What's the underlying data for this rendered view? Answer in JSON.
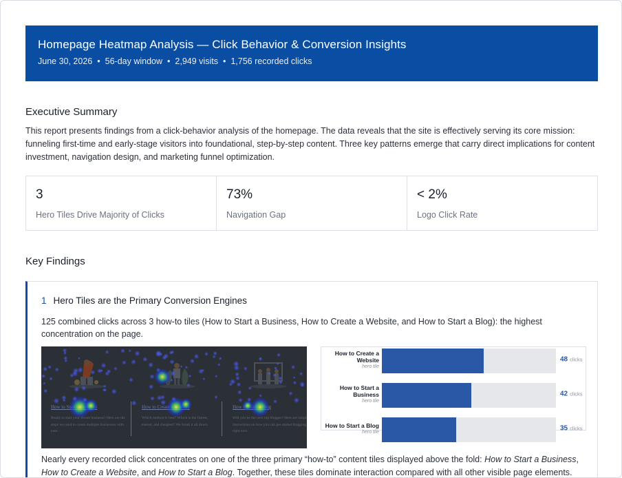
{
  "report": {
    "title": "Homepage Heatmap Analysis — Click Behavior & Conversion Insights",
    "date": "June 30, 2026",
    "window": "56-day window",
    "visits": "2,949 visits",
    "clicks": "1,756 recorded clicks",
    "separator": "•"
  },
  "executive_summary": {
    "heading": "Executive Summary",
    "text": "This report presents findings from a click-behavior analysis of the homepage. The data reveals that the site is effectively serving its core mission: funneling first-time and early-stage visitors into foundational, step-by-step content. Three key patterns emerge that carry direct implications for content investment, navigation design, and marketing funnel optimization."
  },
  "stats": [
    {
      "value": "3",
      "label": "Hero Tiles Drive Majority of Clicks"
    },
    {
      "value": "73%",
      "label": "Navigation Gap"
    },
    {
      "value": "< 2%",
      "label": "Logo Click Rate"
    }
  ],
  "key_findings": {
    "heading": "Key Findings",
    "items": [
      {
        "number": "1",
        "title": "Hero Tiles are the Primary Conversion Engines",
        "description": "125 combined clicks across 3 how-to tiles (How to Start a Business, How to Create a Website, and How to Start a Blog): the highest concentration on the page.",
        "footer_start": "Nearly every recorded click concentrates on one of the three primary “how-to” content tiles displayed above the fold: ",
        "footer_em1": "How to Start a Business",
        "footer_mid1": ", ",
        "footer_em2": "How to Create a Website",
        "footer_mid2": ", and ",
        "footer_em3": "How to Start a Blog",
        "footer_end": ". Together, these tiles dominate interaction compared with all other visible page elements.",
        "heatmap_tiles": [
          {
            "link": "How to Start a Business",
            "body": "Ready to start your dream business? Here are the steps we used to create multiple businesses with ease."
          },
          {
            "link": "How to Create a Website",
            "body": "Which method is best? Which is the fastest, easiest, and cheapest? We break it all down."
          },
          {
            "link": "How to Start a Blog",
            "body": "Will you be the next top blogger? Here are simple instructions on how you can get started blogging right now."
          }
        ]
      }
    ]
  },
  "chart_data": {
    "type": "bar",
    "orientation": "horizontal",
    "categories": [
      "How to Create a Website",
      "How to Start a Business",
      "How to Start a Blog"
    ],
    "category_sublabels": [
      "hero tile",
      "hero tile",
      "hero tile"
    ],
    "values": [
      48,
      42,
      35
    ],
    "value_unit": "clicks",
    "xlim": [
      0,
      82
    ],
    "colors": {
      "bar": "#2b58a6",
      "track": "#e6e7ea"
    }
  },
  "colors": {
    "brand": "#0a4ea3",
    "heatmap_bg": "#2b2f36"
  }
}
